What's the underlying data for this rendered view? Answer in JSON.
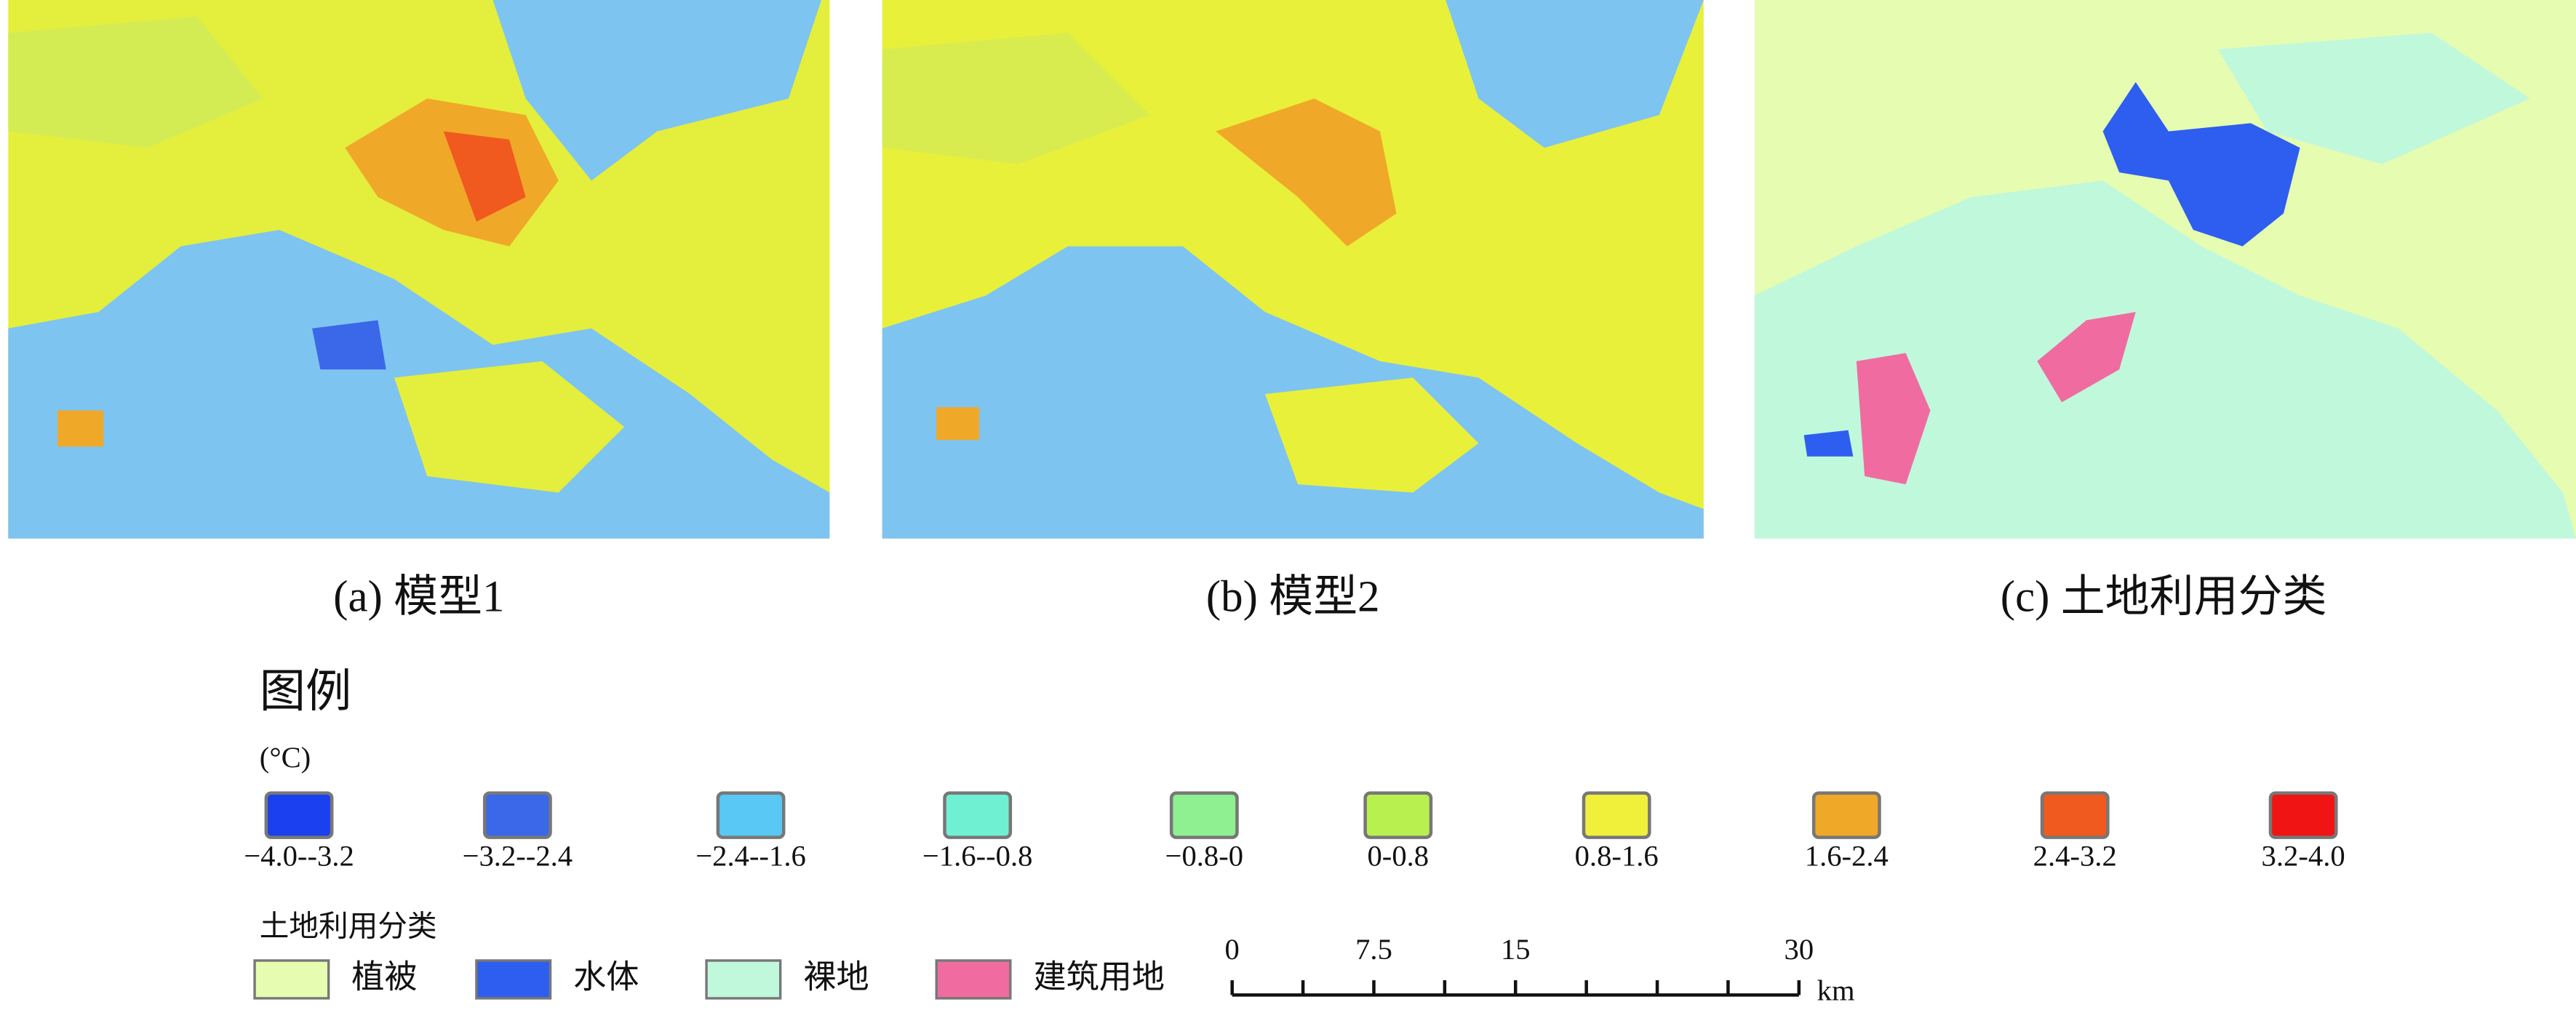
{
  "panels": [
    {
      "caption": "(a) 模型1"
    },
    {
      "caption": "(b) 模型2"
    },
    {
      "caption": "(c) 土地利用分类"
    }
  ],
  "legend": {
    "title": "图例",
    "unit": "(°C)",
    "temperature_classes": [
      {
        "label": "−4.0--3.2",
        "color": "#1a40f0"
      },
      {
        "label": "−3.2--2.4",
        "color": "#3a68e8"
      },
      {
        "label": "−2.4--1.6",
        "color": "#5ac8f5"
      },
      {
        "label": "−1.6--0.8",
        "color": "#70f0d2"
      },
      {
        "label": "−0.8-0",
        "color": "#8ef090"
      },
      {
        "label": "0-0.8",
        "color": "#b8f050"
      },
      {
        "label": "0.8-1.6",
        "color": "#f0f03a"
      },
      {
        "label": "1.6-2.4",
        "color": "#f0a828"
      },
      {
        "label": "2.4-3.2",
        "color": "#f05a1e"
      },
      {
        "label": "3.2-4.0",
        "color": "#f01414"
      }
    ],
    "land_use_title": "土地利用分类",
    "land_use_classes": [
      {
        "label": "植被",
        "color": "#e6fcb0"
      },
      {
        "label": "水体",
        "color": "#2e5ef0"
      },
      {
        "label": "裸地",
        "color": "#c0f8dc"
      },
      {
        "label": "建筑用地",
        "color": "#f06ca0"
      }
    ]
  },
  "scale_bar": {
    "ticks": [
      0,
      7.5,
      15,
      30
    ],
    "unit": "km"
  }
}
